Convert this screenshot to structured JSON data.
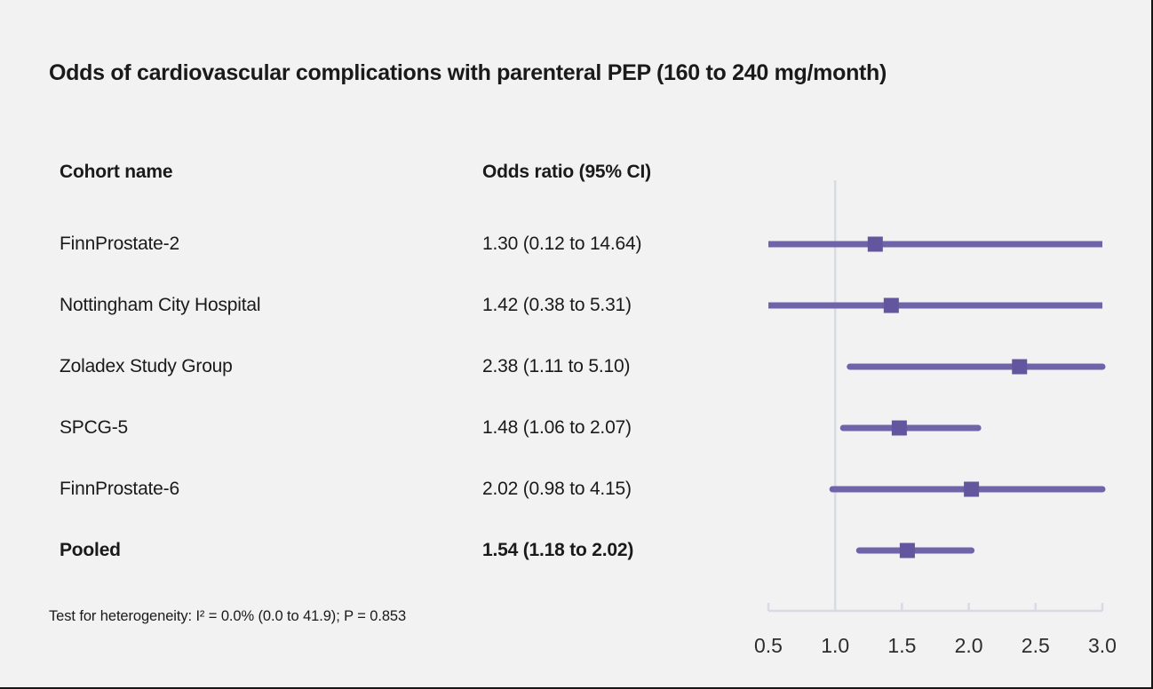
{
  "title": "Odds of cardiovascular complications with parenteral PEP (160 to 240 mg/month)",
  "table": {
    "cohort_header": "Cohort name",
    "or_header": "Odds ratio (95% CI)"
  },
  "footnote": "Test for heterogeneity: I² = 0.0% (0.0 to 41.9); P = 0.853",
  "chart_data": {
    "type": "forest",
    "scale": "linear",
    "xlim": [
      0.5,
      3.0
    ],
    "reference_line": 1.0,
    "xticks": [
      0.5,
      1.0,
      1.5,
      2.0,
      2.5,
      3.0
    ],
    "xtick_labels": [
      "0.5",
      "1.0",
      "1.5",
      "2.0",
      "2.5",
      "3.0"
    ],
    "rows": [
      {
        "label": "FinnProstate-2",
        "or_text": "1.30 (0.12 to 14.64)",
        "or": 1.3,
        "ci_low": 0.12,
        "ci_high": 14.64,
        "bold": false
      },
      {
        "label": "Nottingham City Hospital",
        "or_text": "1.42 (0.38 to 5.31)",
        "or": 1.42,
        "ci_low": 0.38,
        "ci_high": 5.31,
        "bold": false
      },
      {
        "label": "Zoladex Study Group",
        "or_text": "2.38 (1.11 to 5.10)",
        "or": 2.38,
        "ci_low": 1.11,
        "ci_high": 5.1,
        "bold": false
      },
      {
        "label": "SPCG-5",
        "or_text": "1.48 (1.06 to 2.07)",
        "or": 1.48,
        "ci_low": 1.06,
        "ci_high": 2.07,
        "bold": false
      },
      {
        "label": "FinnProstate-6",
        "or_text": "2.02 (0.98 to 4.15)",
        "or": 2.02,
        "ci_low": 0.98,
        "ci_high": 4.15,
        "bold": false
      },
      {
        "label": "Pooled",
        "or_text": "1.54 (1.18 to 2.02)",
        "or": 1.54,
        "ci_low": 1.18,
        "ci_high": 2.02,
        "bold": true
      }
    ],
    "colors": {
      "ci_line": "#6F63AA",
      "marker": "#64559F",
      "axis": "#D8DBE4",
      "tick_label": "#2D2D2D",
      "background": "#F2F2F2"
    }
  }
}
